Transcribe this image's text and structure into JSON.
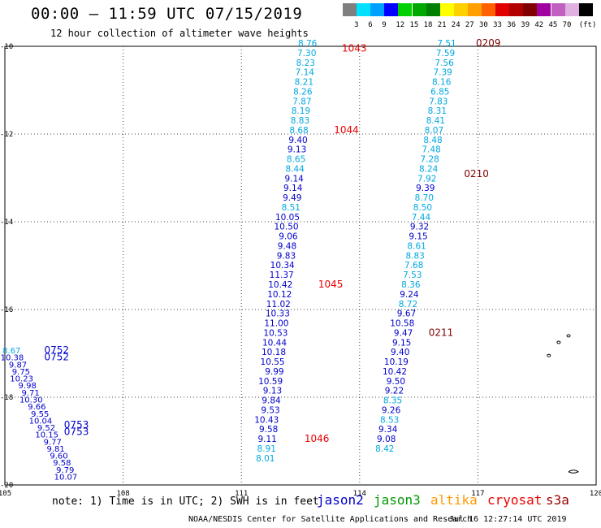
{
  "header": {
    "title": "00:00 – 11:59 UTC 07/15/2019",
    "subtitle": "12 hour collection of altimeter wave heights"
  },
  "colorbar": {
    "unit_label": "(ft)",
    "colors": [
      "#7f7f7f",
      "#00e0ff",
      "#00a0ff",
      "#0000ff",
      "#00d000",
      "#00a800",
      "#008000",
      "#ffff00",
      "#ffd000",
      "#ffa000",
      "#ff6000",
      "#e00000",
      "#b00000",
      "#800000",
      "#a000a0",
      "#c060c0",
      "#e0b0e0",
      "#000000"
    ],
    "labels": [
      "3",
      "6",
      "9",
      "12",
      "15",
      "18",
      "21",
      "24",
      "27",
      "30",
      "33",
      "36",
      "39",
      "42",
      "45",
      "70"
    ]
  },
  "footer": {
    "note": "note: 1) Time is in UTC; 2) SWH is in feet",
    "satellites": [
      {
        "name": "jason2",
        "color": "#0000cc"
      },
      {
        "name": "jason3",
        "color": "#009900"
      },
      {
        "name": "altika",
        "color": "#ff9900"
      },
      {
        "name": "cryosat",
        "color": "#ee0000"
      },
      {
        "name": "s3a",
        "color": "#990000"
      }
    ],
    "credit": "NOAA/NESDIS Center for Satellite Applications and Research",
    "timestamp": "Jul 16 12:27:14 UTC 2019"
  },
  "chart_data": {
    "type": "scatter",
    "xlim": [
      105,
      120
    ],
    "ylim": [
      -20,
      -10
    ],
    "x_ticks": [
      "105",
      "108",
      "111",
      "114",
      "117",
      "120"
    ],
    "y_ticks": [
      "-10",
      "-12",
      "-14",
      "-16",
      "-18",
      "-20"
    ],
    "grid": true,
    "series": [
      {
        "track": "east",
        "color_scale": "swh",
        "points": [
          {
            "x": 116.45,
            "y": -10.0,
            "v": "7.51"
          },
          {
            "x": 116.42,
            "y": -10.22,
            "v": "7.59"
          },
          {
            "x": 116.39,
            "y": -10.44,
            "v": "7.56"
          },
          {
            "x": 116.35,
            "y": -10.66,
            "v": "7.39"
          },
          {
            "x": 116.32,
            "y": -10.88,
            "v": "8.16"
          },
          {
            "x": 116.28,
            "y": -11.1,
            "v": "6.85"
          },
          {
            "x": 116.24,
            "y": -11.32,
            "v": "7.83"
          },
          {
            "x": 116.21,
            "y": -11.54,
            "v": "8.31"
          },
          {
            "x": 116.17,
            "y": -11.76,
            "v": "8.41"
          },
          {
            "x": 116.13,
            "y": -11.98,
            "v": "8.07"
          },
          {
            "x": 116.1,
            "y": -12.2,
            "v": "8.48"
          },
          {
            "x": 116.06,
            "y": -12.42,
            "v": "7.48"
          },
          {
            "x": 116.02,
            "y": -12.64,
            "v": "7.28"
          },
          {
            "x": 115.99,
            "y": -12.86,
            "v": "8.24"
          },
          {
            "x": 115.95,
            "y": -13.08,
            "v": "7.92"
          },
          {
            "x": 115.91,
            "y": -13.3,
            "v": "9.39"
          },
          {
            "x": 115.88,
            "y": -13.52,
            "v": "8.70"
          },
          {
            "x": 115.84,
            "y": -13.74,
            "v": "8.50"
          },
          {
            "x": 115.8,
            "y": -13.96,
            "v": "7.44"
          },
          {
            "x": 115.76,
            "y": -14.18,
            "v": "9.32"
          },
          {
            "x": 115.73,
            "y": -14.4,
            "v": "9.15"
          },
          {
            "x": 115.69,
            "y": -14.62,
            "v": "8.61"
          },
          {
            "x": 115.65,
            "y": -14.84,
            "v": "8.83"
          },
          {
            "x": 115.62,
            "y": -15.06,
            "v": "7.68"
          },
          {
            "x": 115.58,
            "y": -15.28,
            "v": "7.53"
          },
          {
            "x": 115.54,
            "y": -15.5,
            "v": "8.36"
          },
          {
            "x": 115.5,
            "y": -15.72,
            "v": "9.24"
          },
          {
            "x": 115.47,
            "y": -15.94,
            "v": "8.72"
          },
          {
            "x": 115.43,
            "y": -16.16,
            "v": "9.67"
          },
          {
            "x": 115.39,
            "y": -16.38,
            "v": "10.58"
          },
          {
            "x": 115.35,
            "y": -16.6,
            "v": "9.47"
          },
          {
            "x": 115.31,
            "y": -16.82,
            "v": "9.15"
          },
          {
            "x": 115.27,
            "y": -17.04,
            "v": "9.40"
          },
          {
            "x": 115.24,
            "y": -17.26,
            "v": "10.19"
          },
          {
            "x": 115.2,
            "y": -17.48,
            "v": "10.42"
          },
          {
            "x": 115.16,
            "y": -17.7,
            "v": "9.50"
          },
          {
            "x": 115.12,
            "y": -17.92,
            "v": "9.22"
          },
          {
            "x": 115.08,
            "y": -18.14,
            "v": "8.35"
          },
          {
            "x": 115.04,
            "y": -18.36,
            "v": "9.26"
          },
          {
            "x": 115.0,
            "y": -18.58,
            "v": "8.53"
          },
          {
            "x": 114.96,
            "y": -18.8,
            "v": "9.34"
          },
          {
            "x": 114.92,
            "y": -19.02,
            "v": "9.08"
          },
          {
            "x": 114.88,
            "y": -19.24,
            "v": "8.42"
          }
        ]
      },
      {
        "track": "central",
        "color_scale": "swh",
        "points": [
          {
            "x": 112.92,
            "y": -10.0,
            "v": "8.76"
          },
          {
            "x": 112.9,
            "y": -10.22,
            "v": "7.30"
          },
          {
            "x": 112.87,
            "y": -10.44,
            "v": "8.23"
          },
          {
            "x": 112.85,
            "y": -10.66,
            "v": "7.14"
          },
          {
            "x": 112.83,
            "y": -10.88,
            "v": "8.21"
          },
          {
            "x": 112.8,
            "y": -11.1,
            "v": "8.26"
          },
          {
            "x": 112.78,
            "y": -11.32,
            "v": "7.87"
          },
          {
            "x": 112.75,
            "y": -11.54,
            "v": "8.19"
          },
          {
            "x": 112.73,
            "y": -11.76,
            "v": "8.83"
          },
          {
            "x": 112.7,
            "y": -11.98,
            "v": "8.68"
          },
          {
            "x": 112.68,
            "y": -12.2,
            "v": "9.40"
          },
          {
            "x": 112.65,
            "y": -12.42,
            "v": "9.13"
          },
          {
            "x": 112.63,
            "y": -12.64,
            "v": "8.65"
          },
          {
            "x": 112.6,
            "y": -12.86,
            "v": "8.44"
          },
          {
            "x": 112.58,
            "y": -13.08,
            "v": "9.14"
          },
          {
            "x": 112.55,
            "y": -13.3,
            "v": "9.14"
          },
          {
            "x": 112.53,
            "y": -13.52,
            "v": "9.49"
          },
          {
            "x": 112.5,
            "y": -13.74,
            "v": "8.51"
          },
          {
            "x": 112.48,
            "y": -13.96,
            "v": "10.05"
          },
          {
            "x": 112.45,
            "y": -14.18,
            "v": "10.50"
          },
          {
            "x": 112.43,
            "y": -14.4,
            "v": "9.06"
          },
          {
            "x": 112.4,
            "y": -14.62,
            "v": "9.48"
          },
          {
            "x": 112.38,
            "y": -14.84,
            "v": "9.83"
          },
          {
            "x": 112.35,
            "y": -15.06,
            "v": "10.34"
          },
          {
            "x": 112.33,
            "y": -15.28,
            "v": "11.37"
          },
          {
            "x": 112.3,
            "y": -15.5,
            "v": "10.42"
          },
          {
            "x": 112.28,
            "y": -15.72,
            "v": "10.12"
          },
          {
            "x": 112.25,
            "y": -15.94,
            "v": "11.02"
          },
          {
            "x": 112.23,
            "y": -16.16,
            "v": "10.33"
          },
          {
            "x": 112.2,
            "y": -16.38,
            "v": "11.00"
          },
          {
            "x": 112.18,
            "y": -16.6,
            "v": "10.53"
          },
          {
            "x": 112.15,
            "y": -16.82,
            "v": "10.44"
          },
          {
            "x": 112.13,
            "y": -17.04,
            "v": "10.18"
          },
          {
            "x": 112.1,
            "y": -17.26,
            "v": "10.55"
          },
          {
            "x": 112.08,
            "y": -17.48,
            "v": "9.99"
          },
          {
            "x": 112.05,
            "y": -17.7,
            "v": "10.59"
          },
          {
            "x": 112.03,
            "y": -17.92,
            "v": "9.13"
          },
          {
            "x": 112.0,
            "y": -18.14,
            "v": "9.84"
          },
          {
            "x": 111.98,
            "y": -18.36,
            "v": "9.53"
          },
          {
            "x": 111.95,
            "y": -18.58,
            "v": "10.43"
          },
          {
            "x": 111.93,
            "y": -18.8,
            "v": "9.58"
          },
          {
            "x": 111.9,
            "y": -19.02,
            "v": "9.11"
          },
          {
            "x": 111.88,
            "y": -19.24,
            "v": "8.91"
          },
          {
            "x": 111.85,
            "y": -19.46,
            "v": "8.01"
          }
        ]
      },
      {
        "track": "west",
        "color_scale": "swh",
        "points": [
          {
            "x": 105.4,
            "y": -17.0,
            "v": "8.67"
          },
          {
            "x": 105.48,
            "y": -17.16,
            "v": "10.38"
          },
          {
            "x": 105.56,
            "y": -17.32,
            "v": "9.87"
          },
          {
            "x": 105.64,
            "y": -17.48,
            "v": "9.75"
          },
          {
            "x": 105.72,
            "y": -17.64,
            "v": "10.23"
          },
          {
            "x": 105.8,
            "y": -17.8,
            "v": "9.98"
          },
          {
            "x": 105.88,
            "y": -17.96,
            "v": "9.71"
          },
          {
            "x": 105.96,
            "y": -18.12,
            "v": "10.30"
          },
          {
            "x": 106.04,
            "y": -18.28,
            "v": "9.66"
          },
          {
            "x": 106.12,
            "y": -18.44,
            "v": "9.55"
          },
          {
            "x": 106.2,
            "y": -18.6,
            "v": "10.04"
          },
          {
            "x": 106.28,
            "y": -18.76,
            "v": "9.52"
          },
          {
            "x": 106.36,
            "y": -18.92,
            "v": "10.15"
          },
          {
            "x": 106.44,
            "y": -19.08,
            "v": "9.77"
          },
          {
            "x": 106.52,
            "y": -19.24,
            "v": "9.81"
          },
          {
            "x": 106.6,
            "y": -19.4,
            "v": "9.60"
          },
          {
            "x": 106.68,
            "y": -19.56,
            "v": "9.58"
          },
          {
            "x": 106.76,
            "y": -19.72,
            "v": "9.79"
          },
          {
            "x": 106.84,
            "y": -19.88,
            "v": "10.07"
          }
        ]
      }
    ],
    "time_labels": [
      {
        "text": "0209",
        "x": 116.95,
        "y": -10.0,
        "color": "#800000"
      },
      {
        "text": "1043",
        "x": 113.55,
        "y": -10.12,
        "color": "#ee0000"
      },
      {
        "text": "1044",
        "x": 113.35,
        "y": -11.98,
        "color": "#ee0000"
      },
      {
        "text": "0210",
        "x": 116.65,
        "y": -12.98,
        "color": "#800000"
      },
      {
        "text": "1045",
        "x": 112.95,
        "y": -15.5,
        "color": "#ee0000"
      },
      {
        "text": "0211",
        "x": 115.75,
        "y": -16.6,
        "color": "#800000"
      },
      {
        "text": "0752",
        "x": 106.0,
        "y": -17.0,
        "color": "#0000cc"
      },
      {
        "text": "0752",
        "x": 106.0,
        "y": -17.16,
        "color": "#0000cc"
      },
      {
        "text": "0753",
        "x": 106.5,
        "y": -18.7,
        "color": "#0000cc"
      },
      {
        "text": "0753",
        "x": 106.5,
        "y": -18.86,
        "color": "#0000cc"
      },
      {
        "text": "1046",
        "x": 112.6,
        "y": -19.02,
        "color": "#ee0000"
      }
    ]
  }
}
